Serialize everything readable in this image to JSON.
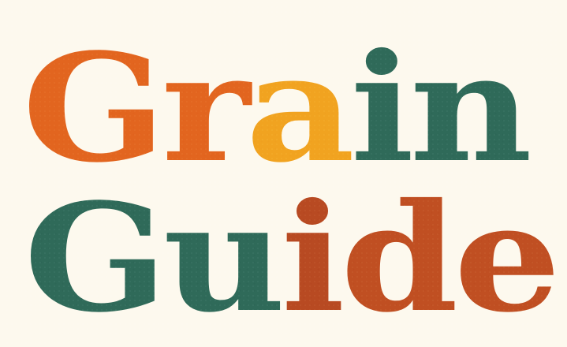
{
  "logo": {
    "line1": [
      {
        "char": "G",
        "color": "#e2651f"
      },
      {
        "char": "r",
        "color": "#e2651f"
      },
      {
        "char": "a",
        "color": "#f1a320"
      },
      {
        "char": "i",
        "color": "#2f6a59"
      },
      {
        "char": "n",
        "color": "#2f6a59"
      }
    ],
    "line2": [
      {
        "char": "G",
        "color": "#2f6a59"
      },
      {
        "char": "u",
        "color": "#2f6a59"
      },
      {
        "char": "i",
        "color": "#b84a22"
      },
      {
        "char": "d",
        "color": "#c04f22"
      },
      {
        "char": "e",
        "color": "#c04f22"
      }
    ]
  },
  "colors": {
    "background": "#fdf9ee",
    "orange": "#e2651f",
    "amber": "#f1a320",
    "green": "#2f6a59",
    "rust": "#c04f22"
  }
}
